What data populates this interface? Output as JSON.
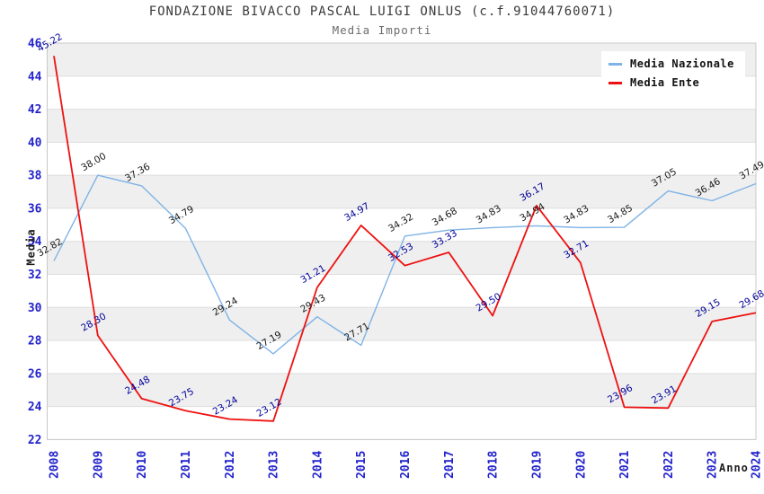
{
  "header": {
    "title": "FONDAZIONE BIVACCO PASCAL LUIGI ONLUS (c.f.91044760071)",
    "subtitle": "Media Importi"
  },
  "legend": {
    "items": [
      {
        "label": "Media Nazionale",
        "color": "#7FB3E6"
      },
      {
        "label": "Media Ente",
        "color": "#EE1111"
      }
    ]
  },
  "chart_data": {
    "type": "line",
    "title": "FONDAZIONE BIVACCO PASCAL LUIGI ONLUS (c.f.91044760071)",
    "subtitle": "Media Importi",
    "xlabel": "Anno",
    "ylabel": "Media",
    "x": [
      2008,
      2009,
      2010,
      2011,
      2012,
      2013,
      2014,
      2015,
      2016,
      2017,
      2018,
      2019,
      2020,
      2021,
      2022,
      2023,
      2024
    ],
    "ylim": [
      22,
      46
    ],
    "y_tick_step": 2,
    "grid": true,
    "banded_background": true,
    "legend_position": "top-right",
    "colors": {
      "tick_label": "#2323CC",
      "band": "#EFEFEF",
      "grid": "#DEDEDE",
      "plot_border": "#C8C8C8"
    },
    "series": [
      {
        "name": "Media Nazionale",
        "color": "#7FB3E6",
        "label_color": "#1A1A1A",
        "values": [
          32.82,
          38.0,
          37.36,
          34.79,
          29.24,
          27.19,
          29.43,
          27.71,
          34.32,
          34.68,
          34.83,
          34.94,
          34.83,
          34.85,
          37.05,
          36.46,
          37.49
        ]
      },
      {
        "name": "Media Ente",
        "color": "#EE1111",
        "label_color": "#000099",
        "values": [
          45.22,
          28.3,
          24.48,
          23.75,
          23.24,
          23.12,
          31.21,
          34.97,
          32.53,
          33.33,
          29.5,
          36.17,
          32.71,
          23.96,
          23.91,
          29.15,
          29.68
        ]
      }
    ]
  }
}
